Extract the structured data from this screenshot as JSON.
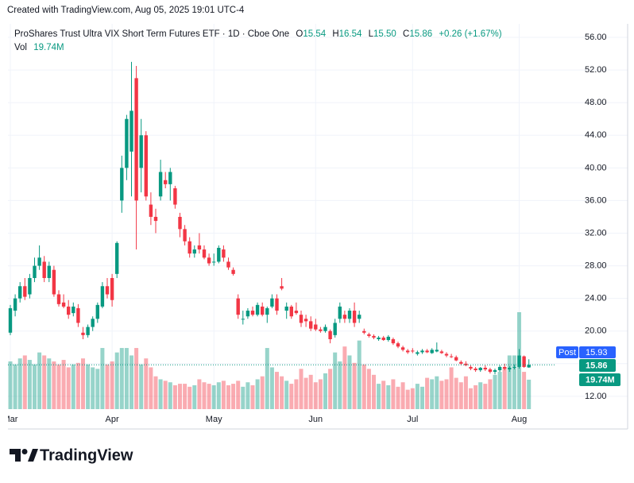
{
  "footer_note": "Created with TradingView.com, Aug 05, 2025 19:01 UTC-4",
  "brand": "TradingView",
  "chart_data": {
    "type": "candlestick",
    "title": "ProShares Trust Ultra VIX Short Term Futures ETF · 1D · Cboe One",
    "ohlc_labels": [
      "O",
      "H",
      "L",
      "C"
    ],
    "ohlc_value_labels": [
      "15.54",
      "16.54",
      "15.50",
      "15.86"
    ],
    "change": "+0.26 (+1.67%)",
    "volume_name": "Vol",
    "volume_label": "19.74M",
    "post_label": "Post",
    "post_price": 15.93,
    "categories": [
      "Mar",
      null,
      null,
      null,
      null,
      null,
      null,
      null,
      null,
      null,
      null,
      null,
      null,
      null,
      null,
      null,
      null,
      null,
      null,
      null,
      null,
      "Apr",
      null,
      null,
      null,
      null,
      null,
      null,
      null,
      null,
      null,
      null,
      null,
      null,
      null,
      null,
      null,
      null,
      null,
      null,
      null,
      null,
      "May",
      null,
      null,
      null,
      null,
      null,
      null,
      null,
      null,
      null,
      null,
      null,
      null,
      null,
      null,
      null,
      null,
      null,
      null,
      null,
      null,
      "Jun",
      null,
      null,
      null,
      null,
      null,
      null,
      null,
      null,
      null,
      null,
      null,
      null,
      null,
      null,
      null,
      null,
      null,
      null,
      null,
      "Jul",
      null,
      null,
      null,
      null,
      null,
      null,
      null,
      null,
      null,
      null,
      null,
      null,
      null,
      null,
      null,
      null,
      null,
      null,
      null,
      null,
      null,
      "Aug",
      null,
      null
    ],
    "open": [
      19.8,
      22.5,
      24.0,
      25.5,
      24.5,
      26.5,
      28.0,
      28.5,
      26.5,
      27.5,
      24.5,
      23.5,
      23.0,
      22.2,
      22.8,
      19.8,
      19.5,
      20.5,
      21.5,
      23.0,
      25.5,
      26.5,
      27.0,
      36.0,
      40.0,
      42.0,
      51.0,
      40.0,
      44.0,
      35.5,
      34.0,
      36.5,
      38.5,
      38.0,
      37.5,
      34.0,
      32.5,
      31.0,
      29.5,
      30.5,
      30.0,
      29.0,
      28.5,
      28.5,
      30.0,
      28.5,
      27.5,
      24.0,
      21.5,
      21.8,
      22.5,
      22.0,
      23.0,
      22.0,
      23.0,
      24.0,
      25.5,
      22.5,
      23.0,
      22.5,
      22.0,
      21.5,
      21.2,
      20.8,
      20.2,
      20.0,
      20.0,
      19.5,
      21.5,
      22.0,
      21.5,
      22.5,
      21.5,
      20.0,
      19.6,
      19.4,
      19.0,
      19.2,
      18.9,
      19.0,
      18.5,
      18.0,
      17.6,
      17.6,
      17.2,
      17.4,
      17.6,
      17.3,
      17.5,
      17.5,
      17.2,
      16.9,
      16.8,
      16.2,
      16.0,
      15.6,
      15.4,
      15.2,
      15.5,
      15.3,
      15.0,
      15.2,
      15.6,
      15.3,
      15.5,
      15.6,
      16.9,
      15.54
    ],
    "high": [
      23.2,
      24.5,
      26.0,
      26.5,
      27.0,
      29.0,
      30.5,
      29.2,
      28.5,
      28.0,
      25.0,
      24.5,
      23.8,
      23.5,
      23.3,
      20.5,
      20.8,
      21.8,
      23.5,
      26.0,
      26.5,
      27.0,
      31.0,
      41.5,
      46.5,
      53.0,
      52.5,
      46.0,
      44.5,
      37.0,
      35.0,
      41.0,
      39.5,
      40.0,
      37.8,
      34.5,
      33.0,
      31.5,
      30.5,
      32.0,
      30.5,
      29.5,
      29.5,
      30.5,
      30.5,
      29.0,
      27.8,
      24.5,
      22.5,
      22.8,
      23.0,
      23.5,
      23.5,
      23.0,
      24.5,
      24.5,
      26.5,
      23.5,
      23.2,
      23.5,
      22.5,
      22.0,
      21.8,
      21.5,
      20.5,
      20.8,
      20.2,
      21.5,
      23.5,
      22.5,
      22.8,
      23.5,
      22.5,
      20.3,
      19.8,
      19.6,
      19.4,
      19.4,
      19.5,
      19.2,
      18.7,
      18.2,
      17.8,
      17.9,
      17.6,
      17.8,
      17.8,
      17.9,
      18.6,
      17.7,
      17.4,
      17.2,
      17.0,
      16.4,
      16.3,
      15.8,
      15.6,
      15.6,
      15.8,
      15.5,
      15.4,
      15.8,
      16.0,
      15.7,
      15.9,
      17.8,
      17.0,
      16.54
    ],
    "low": [
      19.5,
      21.8,
      23.5,
      23.8,
      24.0,
      26.0,
      27.5,
      26.0,
      26.0,
      24.2,
      23.0,
      22.8,
      21.5,
      21.8,
      20.5,
      19.0,
      19.2,
      20.0,
      21.0,
      22.8,
      24.0,
      23.0,
      26.5,
      34.5,
      38.5,
      36.5,
      30.0,
      37.0,
      36.0,
      33.0,
      32.0,
      36.0,
      37.5,
      36.0,
      35.0,
      31.5,
      30.5,
      29.0,
      29.0,
      29.5,
      28.8,
      28.0,
      28.0,
      28.3,
      28.5,
      27.5,
      26.8,
      21.5,
      20.8,
      21.5,
      21.8,
      21.8,
      21.8,
      21.0,
      22.8,
      22.0,
      25.0,
      21.5,
      21.5,
      22.0,
      20.5,
      20.5,
      20.0,
      20.0,
      19.8,
      19.8,
      18.5,
      19.2,
      21.0,
      21.0,
      21.0,
      20.5,
      21.0,
      19.6,
      19.2,
      19.0,
      18.8,
      18.8,
      18.7,
      18.3,
      17.9,
      17.5,
      17.2,
      17.3,
      17.0,
      17.2,
      17.3,
      17.2,
      17.4,
      17.2,
      16.8,
      16.7,
      16.3,
      15.8,
      15.7,
      15.2,
      15.0,
      15.0,
      15.1,
      14.8,
      14.7,
      15.0,
      15.2,
      15.0,
      15.3,
      15.4,
      15.5,
      15.5
    ],
    "close": [
      22.8,
      24.0,
      25.5,
      24.2,
      26.5,
      28.0,
      29.0,
      26.5,
      28.0,
      24.5,
      23.3,
      23.0,
      22.0,
      23.0,
      21.0,
      19.5,
      20.5,
      21.5,
      23.2,
      25.5,
      24.5,
      23.8,
      30.8,
      40.0,
      46.0,
      47.0,
      36.0,
      44.0,
      36.5,
      34.0,
      33.5,
      39.5,
      38.0,
      39.5,
      35.5,
      32.5,
      31.0,
      29.5,
      30.0,
      30.0,
      29.0,
      28.3,
      28.5,
      30.2,
      29.0,
      27.8,
      27.0,
      22.0,
      21.5,
      22.5,
      22.0,
      23.2,
      22.0,
      22.8,
      24.0,
      22.5,
      25.2,
      23.0,
      21.8,
      22.2,
      21.0,
      21.2,
      20.3,
      20.2,
      20.0,
      20.5,
      19.0,
      21.0,
      23.0,
      21.5,
      22.5,
      21.0,
      22.0,
      19.8,
      19.4,
      19.2,
      19.2,
      18.9,
      19.3,
      18.5,
      18.1,
      17.7,
      17.4,
      17.5,
      17.4,
      17.6,
      17.4,
      17.7,
      17.7,
      17.3,
      17.0,
      16.8,
      16.4,
      16.0,
      15.8,
      15.4,
      15.2,
      15.5,
      15.3,
      15.0,
      15.2,
      15.6,
      15.4,
      15.5,
      15.6,
      17.0,
      15.6,
      15.86
    ],
    "volume": [
      32,
      30,
      34,
      36,
      33,
      30,
      38,
      36,
      34,
      32,
      30,
      33,
      28,
      30,
      31,
      34,
      30,
      28,
      27,
      41,
      30,
      32,
      38,
      41,
      41,
      36,
      41,
      30,
      34,
      28,
      22,
      20,
      19,
      18,
      16,
      17,
      17,
      15,
      16,
      20,
      18,
      17,
      16,
      18,
      19,
      16,
      17,
      19,
      15,
      18,
      16,
      20,
      22,
      41,
      28,
      25,
      22,
      19,
      17,
      20,
      27,
      21,
      23,
      18,
      20,
      24,
      27,
      38,
      32,
      42,
      36,
      31,
      46,
      30,
      27,
      23,
      17,
      19,
      16,
      20,
      15,
      18,
      13,
      14,
      17,
      15,
      21,
      20,
      22,
      19,
      20,
      28,
      21,
      18,
      22,
      14,
      16,
      18,
      17,
      20,
      23,
      25,
      28,
      36,
      36,
      65,
      25,
      19.74
    ],
    "up_color": "#089981",
    "down_color": "#f23645",
    "post_color": "#2962ff",
    "ylim": [
      10.43,
      57.66
    ],
    "yticks": [
      {
        "value": 12,
        "label": "12.00"
      },
      {
        "value": 16,
        "label": "16.00"
      },
      {
        "value": 20,
        "label": "20.00"
      },
      {
        "value": 24,
        "label": "24.00"
      },
      {
        "value": 28,
        "label": "28.00"
      },
      {
        "value": 32,
        "label": "32.00"
      },
      {
        "value": 36,
        "label": "36.00"
      },
      {
        "value": 40,
        "label": "40.00"
      },
      {
        "value": 44,
        "label": "44.00"
      },
      {
        "value": 48,
        "label": "48.00"
      },
      {
        "value": 52,
        "label": "52.00"
      },
      {
        "value": 56,
        "label": "56.00"
      }
    ],
    "grid": true
  }
}
